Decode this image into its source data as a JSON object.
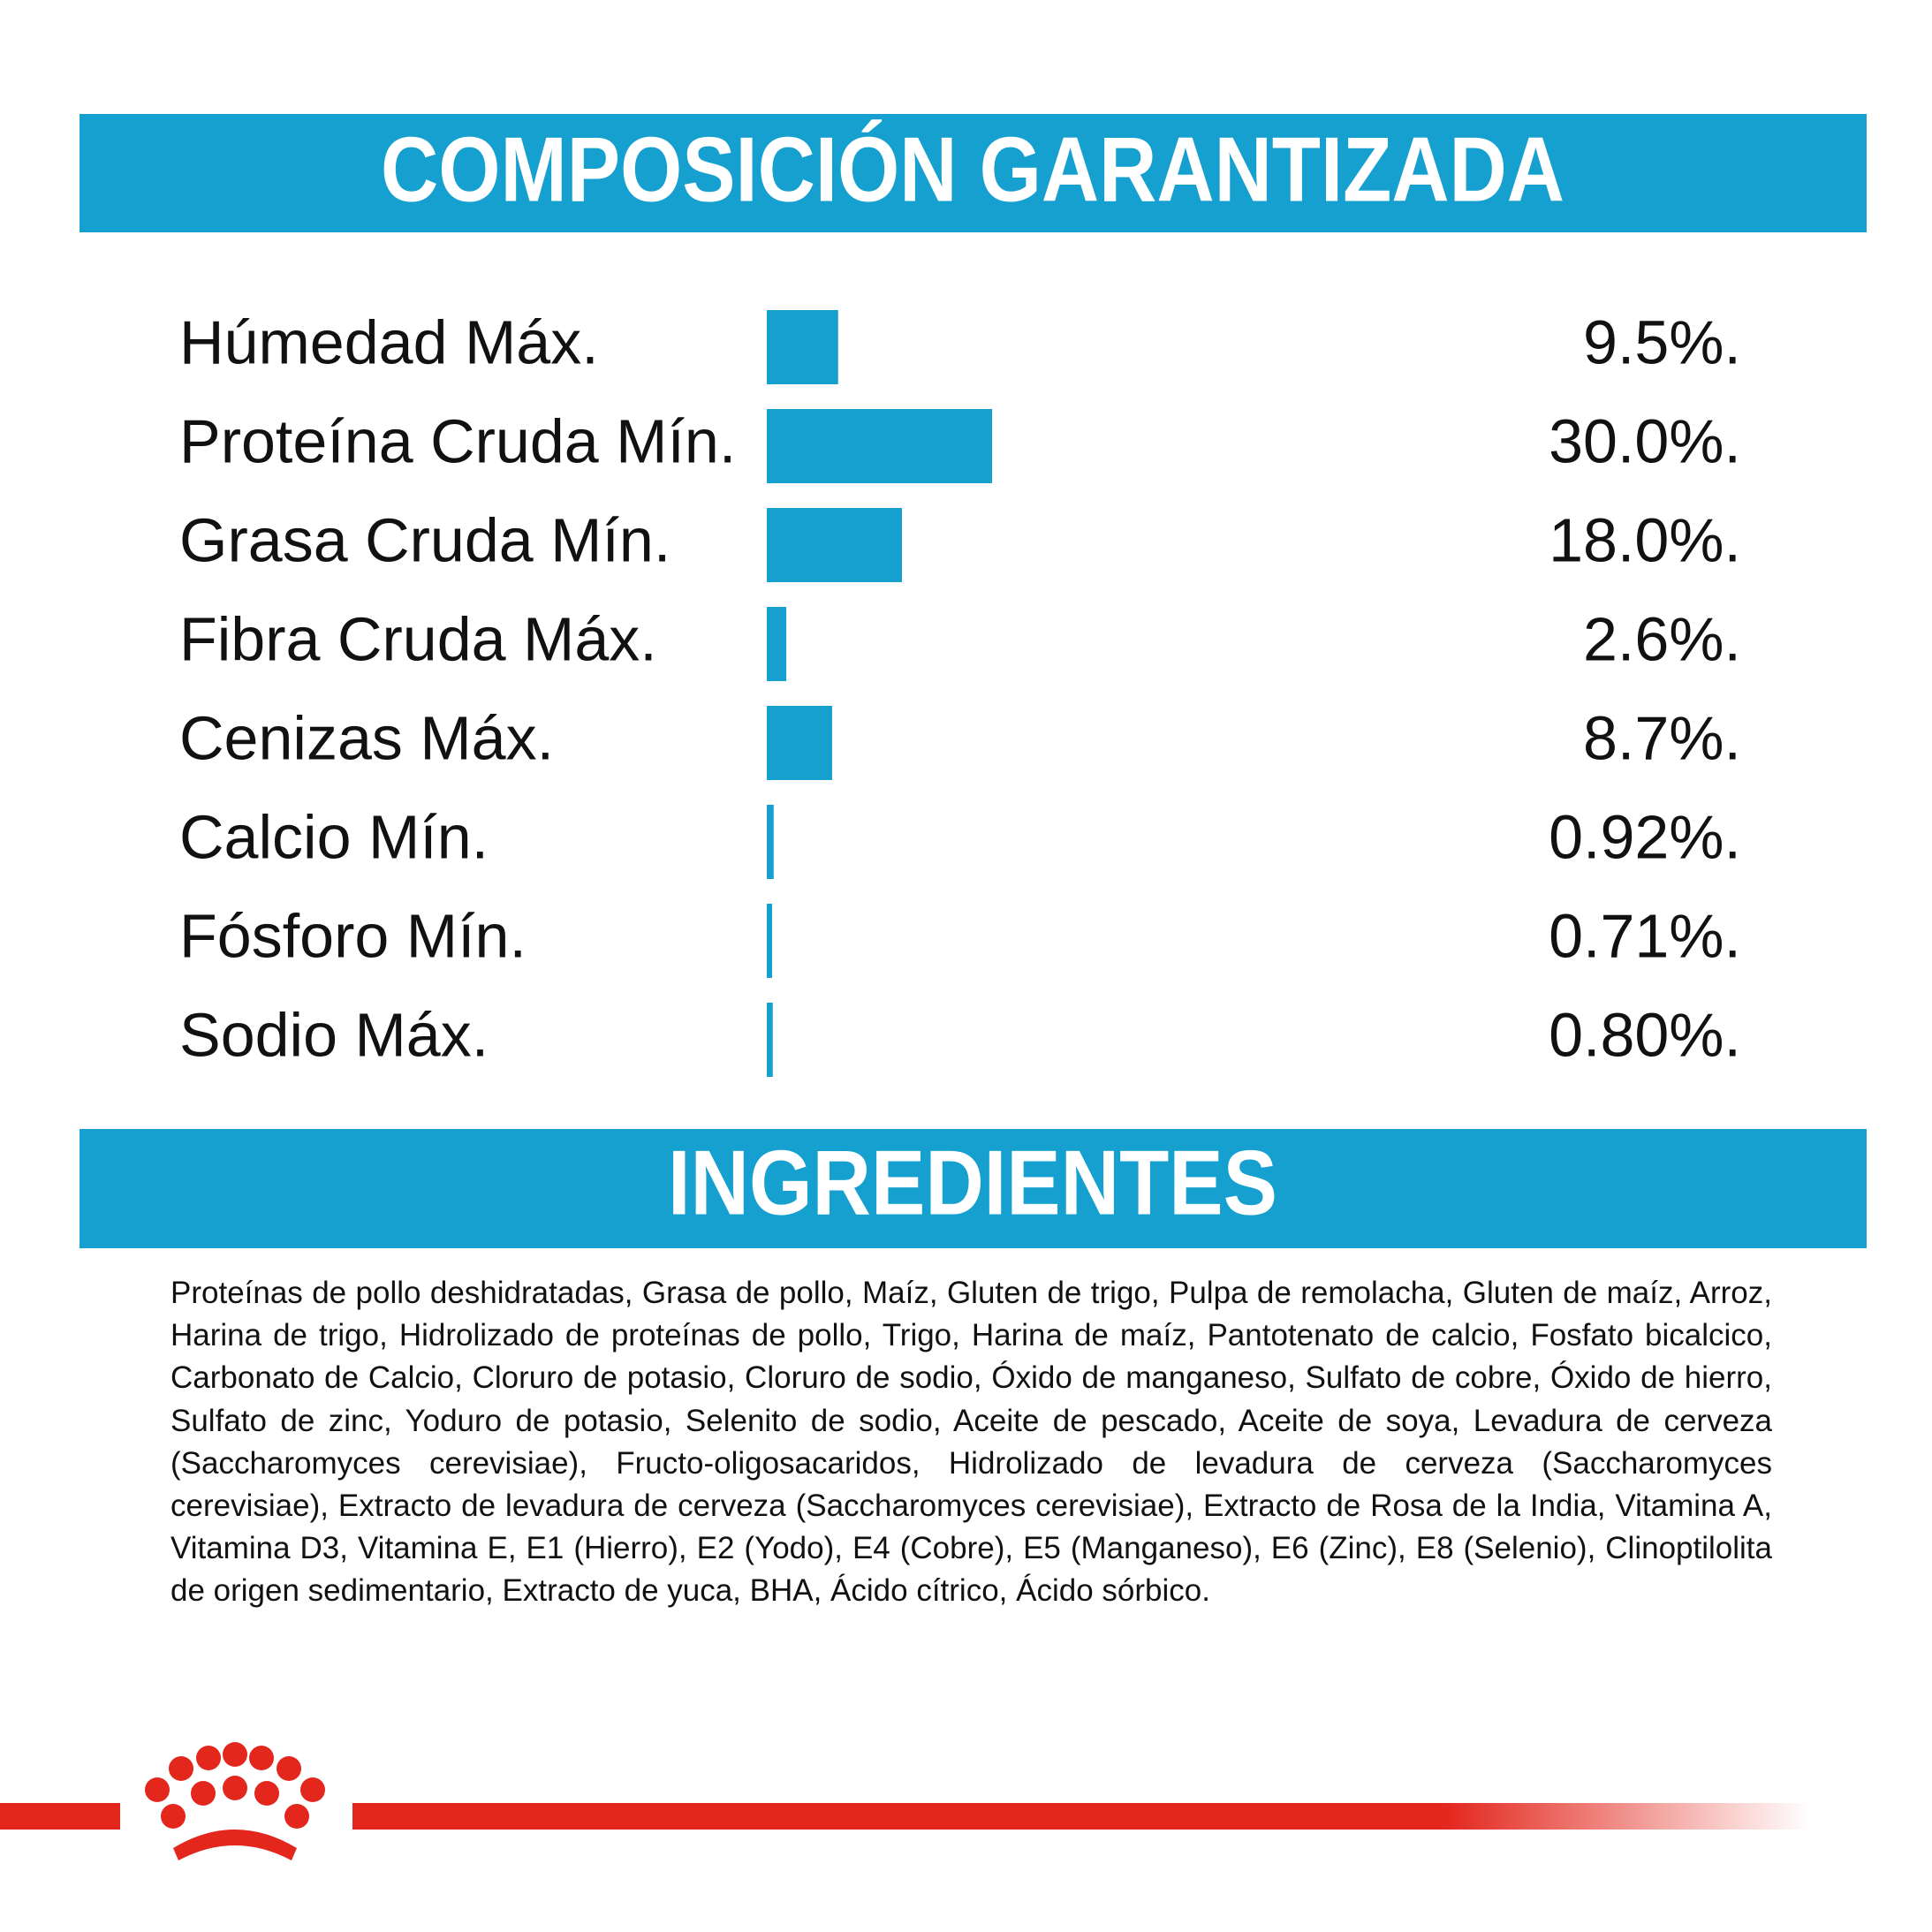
{
  "chart_data": {
    "type": "bar",
    "title": "COMPOSICIÓN GARANTIZADA",
    "categories": [
      "Húmedad Máx.",
      "Proteína Cruda Mín.",
      "Grasa Cruda Mín.",
      "Fibra Cruda Máx.",
      "Cenizas Máx.",
      "Calcio Mín.",
      "Fósforo Mín.",
      "Sodio Máx."
    ],
    "values": [
      9.5,
      30.0,
      18.0,
      2.6,
      8.7,
      0.92,
      0.71,
      0.8
    ],
    "value_labels": [
      "9.5%.",
      "30.0%.",
      "18.0%.",
      "2.6%.",
      "8.7%.",
      "0.92%.",
      "0.71%.",
      "0.80%."
    ],
    "color": "#16a0d0"
  },
  "ingredients": {
    "title": "INGREDIENTES",
    "text": "Proteínas de pollo deshidratadas, Grasa de pollo, Maíz, Gluten de trigo, Pulpa de remolacha, Gluten de maíz, Arroz, Harina de trigo, Hidrolizado de proteínas de pollo, Trigo, Harina de maíz, Pantotenato de calcio, Fosfato bicalcico, Carbonato de Calcio, Cloruro de potasio, Cloruro de sodio, Óxido de manganeso, Sulfato de cobre, Óxido de hierro, Sulfato de zinc, Yoduro de potasio, Selenito de sodio, Aceite de pescado, Aceite de soya, Levadura de cerveza (Saccharomyces cerevisiae), Fructo-oligosacaridos, Hidrolizado de levadura de cerveza (Saccharomyces cerevisiae), Extracto de levadura de cerveza (Saccharomyces cerevisiae), Extracto de Rosa de la India, Vitamina A, Vitamina D3, Vitamina E, E1 (Hierro), E2 (Yodo), E4 (Cobre), E5 (Manganeso), E6 (Zinc), E8 (Selenio), Clinoptilolita de origen sedimentario, Extracto de yuca, BHA, Ácido cítrico, Ácido sórbico."
  }
}
